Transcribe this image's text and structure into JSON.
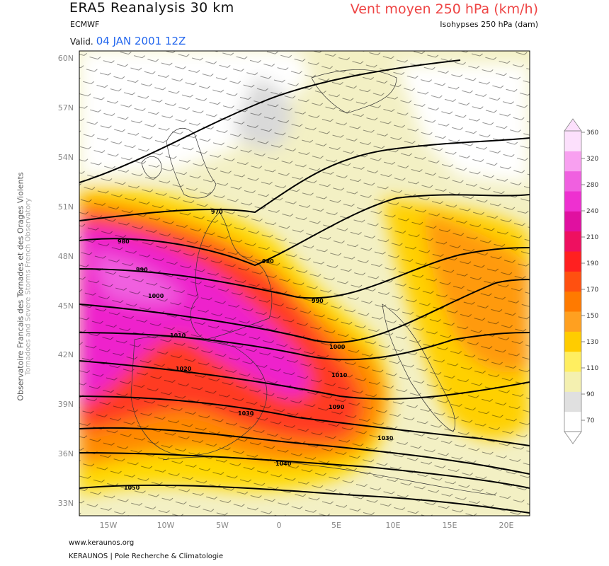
{
  "header": {
    "title": "ERA5 Reanalysis 30 km",
    "source": "ECMWF",
    "valid_label": "Valid.",
    "valid_value": "04 JAN 2001 12Z",
    "parameter": "Vent moyen 250 hPa (km/h)",
    "contour_info": "Isohypses 250 hPa (dam)"
  },
  "side": {
    "line1": "Observatoire Francais des Tornades et des Orages Violents",
    "line2": "Tornadoes and Severe Storms French Observatory"
  },
  "footer": {
    "website": "www.keraunos.org",
    "org": "KERAUNOS | Pole Recherche & Climatologie"
  },
  "map": {
    "lat_labels": [
      "60N",
      "57N",
      "54N",
      "51N",
      "48N",
      "45N",
      "42N",
      "39N",
      "36N",
      "33N"
    ],
    "lon_labels": [
      "15W",
      "10W",
      "5W",
      "0",
      "5E",
      "10E",
      "15E",
      "20E"
    ],
    "contour_labels": [
      "970",
      "980",
      "980",
      "990",
      "990",
      "1000",
      "1000",
      "1010",
      "1010",
      "1020",
      "1030",
      "1030",
      "1040",
      "1050",
      "1090"
    ],
    "colors": {
      "frame": "#000000",
      "white_zone": "#ffffff",
      "magenta": "#ee22cc",
      "red": "#ee2222"
    }
  },
  "colorbar": {
    "ticks": [
      "360",
      "320",
      "280",
      "240",
      "210",
      "190",
      "170",
      "150",
      "130",
      "110",
      "90",
      "70"
    ],
    "colors": [
      "#ffffff",
      "#e0e0e0",
      "#f4f0b0",
      "#ffee60",
      "#ffcc00",
      "#ffa020",
      "#ff7a00",
      "#ff5010",
      "#ff2020",
      "#ee1060",
      "#e010a0",
      "#ee30d0",
      "#f060e0",
      "#f8a0f0",
      "#fce0fc"
    ]
  }
}
